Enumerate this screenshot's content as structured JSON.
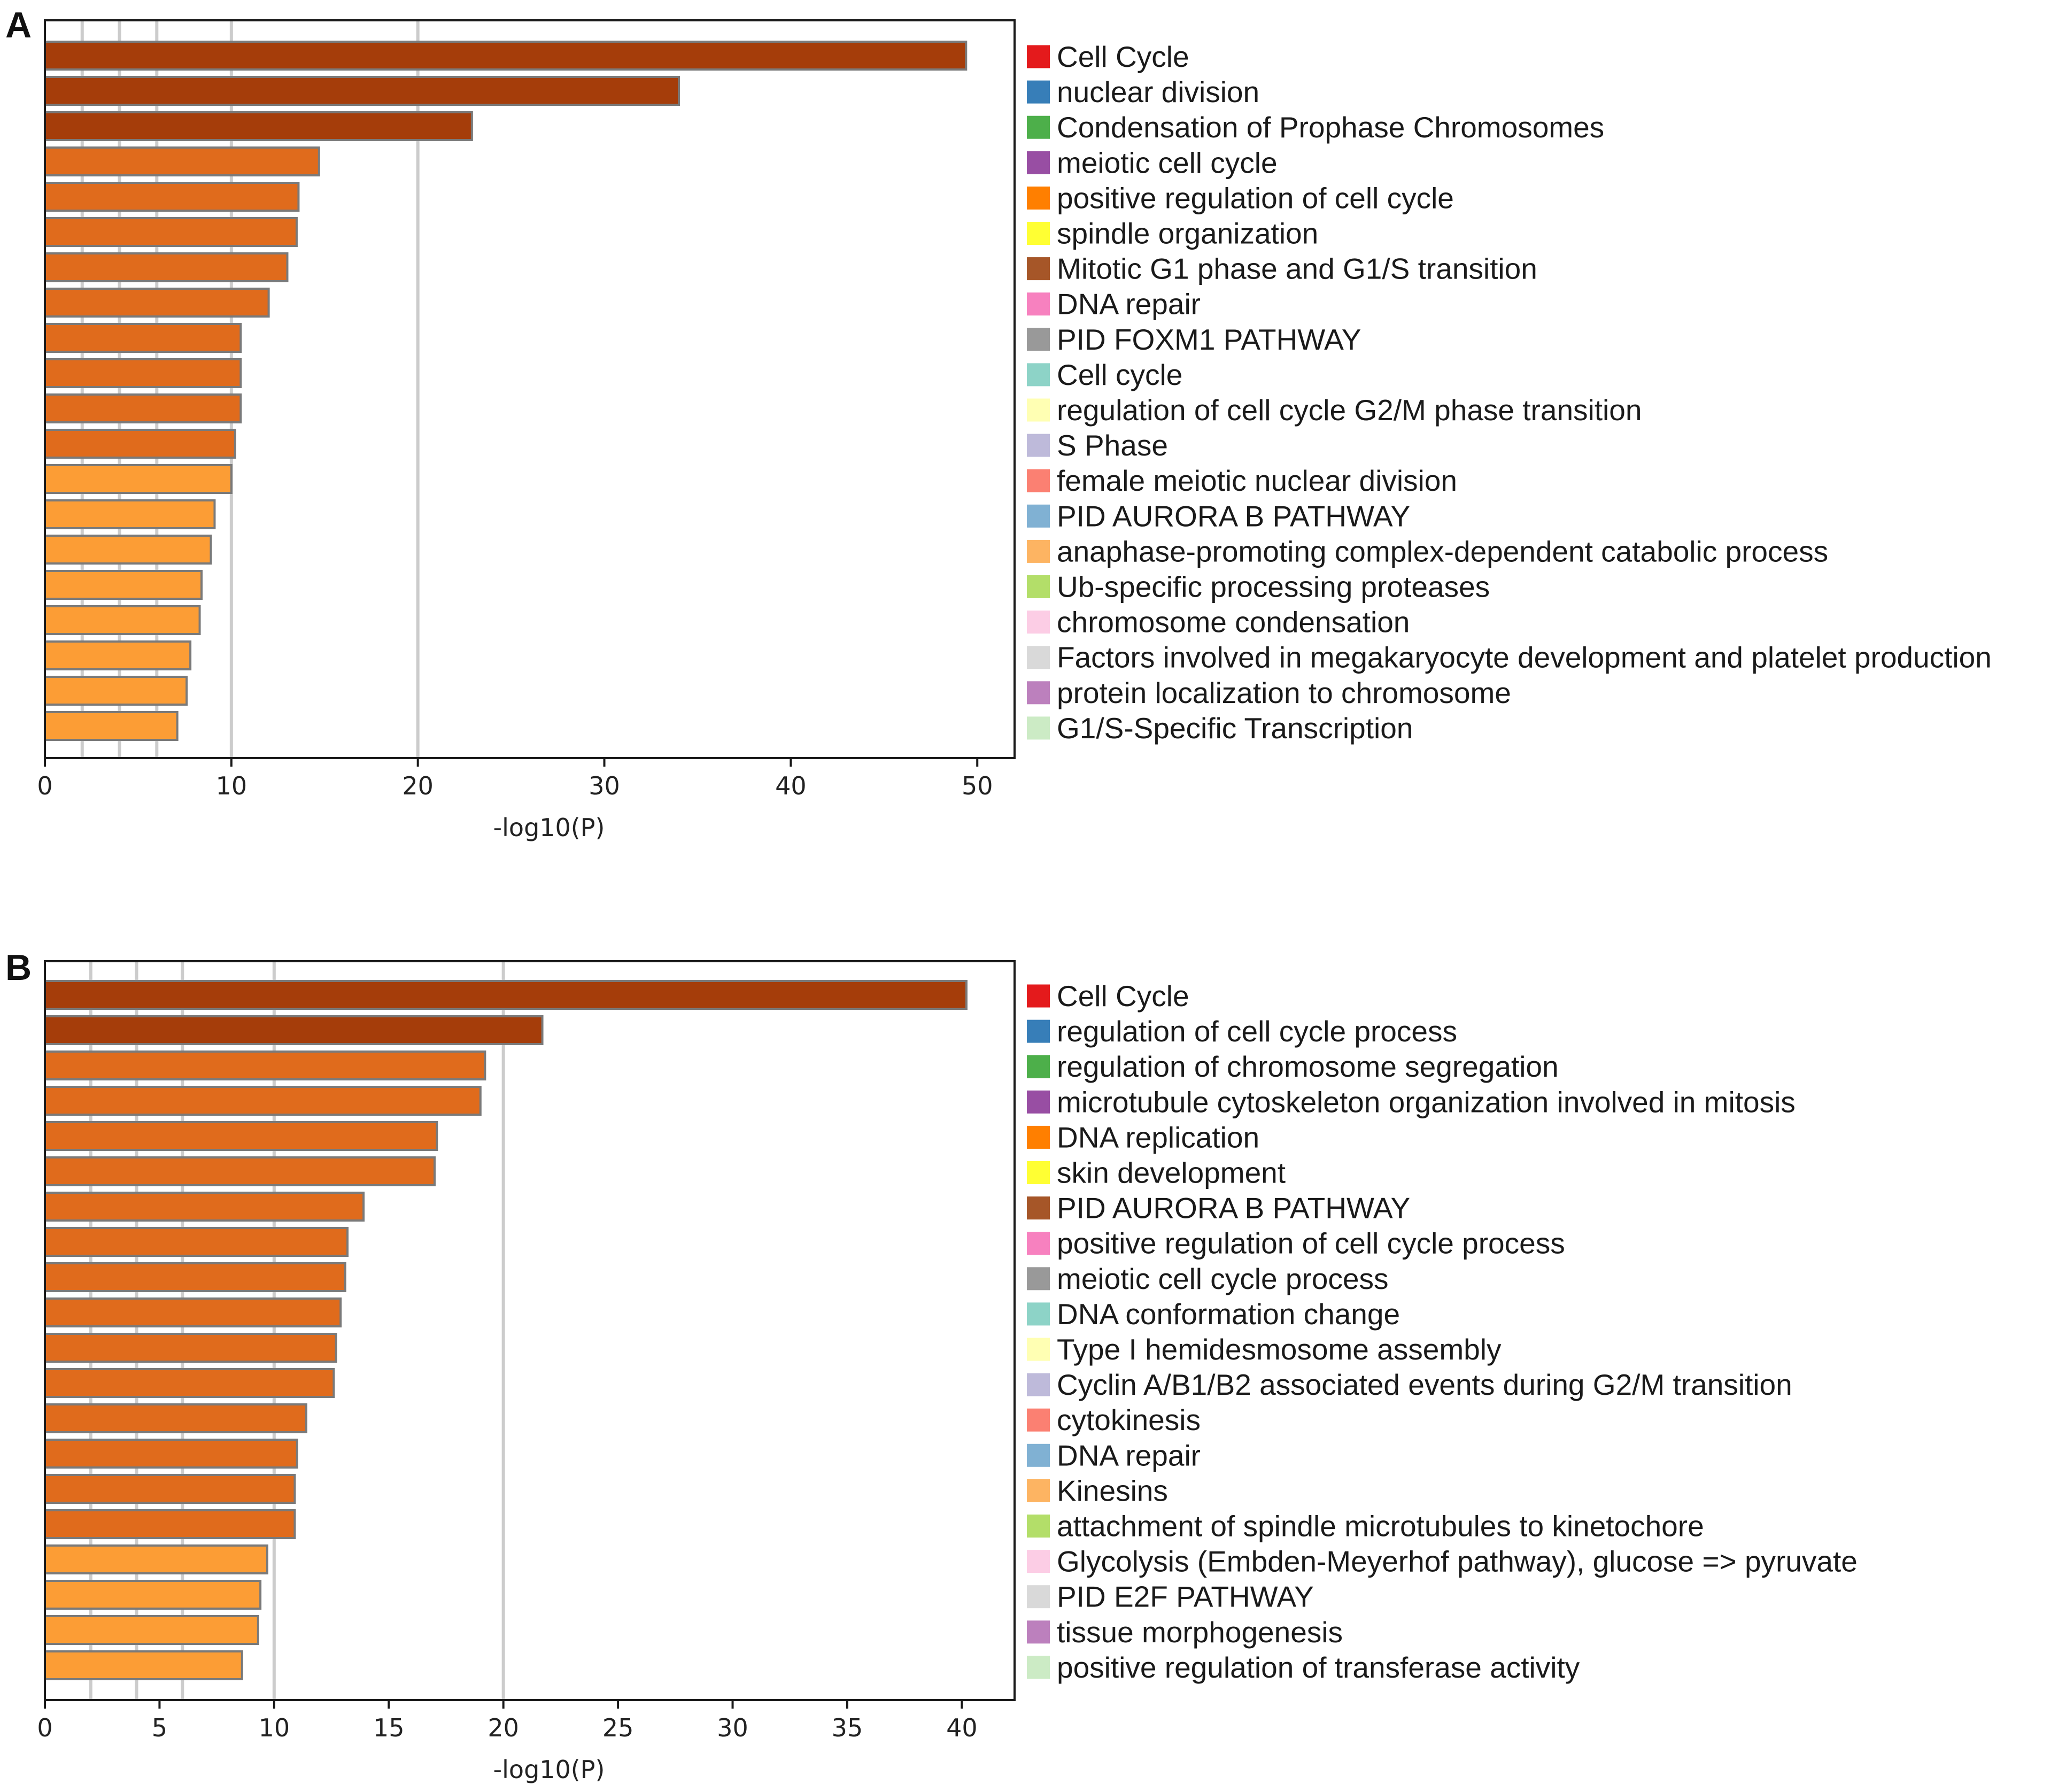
{
  "figure": {
    "panels": [
      "A",
      "B"
    ]
  },
  "chart_data": [
    {
      "panel": "A",
      "type": "bar",
      "orientation": "horizontal",
      "xlabel": "-log10(P)",
      "xlim": [
        0,
        52
      ],
      "xticks": [
        0,
        10,
        20,
        30,
        40,
        50
      ],
      "gridlines": [
        2,
        4,
        6,
        10,
        20
      ],
      "legend_position": "right",
      "categories": [
        "Cell Cycle",
        "nuclear division",
        "Condensation of Prophase Chromosomes",
        "meiotic cell cycle",
        "positive regulation of cell cycle",
        "spindle organization",
        "Mitotic G1 phase and G1/S transition",
        "DNA repair",
        "PID FOXM1 PATHWAY",
        "Cell cycle",
        "regulation of cell cycle G2/M phase transition",
        "S Phase",
        "female meiotic nuclear division",
        "PID AURORA B PATHWAY",
        "anaphase-promoting complex-dependent catabolic process",
        "Ub-specific processing proteases",
        "chromosome condensation",
        "Factors involved in megakaryocyte development and platelet production",
        "protein localization to chromosome",
        "G1/S-Specific Transcription"
      ],
      "values": [
        49.4,
        34.0,
        22.9,
        14.7,
        13.6,
        13.5,
        13.0,
        12.0,
        10.5,
        10.5,
        10.5,
        10.2,
        10.0,
        9.1,
        8.9,
        8.4,
        8.3,
        7.8,
        7.6,
        7.1
      ],
      "bar_colors": [
        "#a53d0a",
        "#a53d0a",
        "#a53d0a",
        "#e06b1c",
        "#e06b1c",
        "#e06b1c",
        "#e06b1c",
        "#e06b1c",
        "#e06b1c",
        "#e06b1c",
        "#e06b1c",
        "#e06b1c",
        "#fc9d35",
        "#fc9d35",
        "#fc9d35",
        "#fc9d35",
        "#fc9d35",
        "#fc9d35",
        "#fc9d35",
        "#fc9d35"
      ],
      "legend_colors": [
        "#e41a1c",
        "#377eb8",
        "#4daf4a",
        "#984ea3",
        "#ff7f00",
        "#ffff33",
        "#a65628",
        "#f781bf",
        "#999999",
        "#8dd3c7",
        "#ffffb3",
        "#bebada",
        "#fb8072",
        "#80b1d3",
        "#fdb462",
        "#b3de69",
        "#fccde5",
        "#d9d9d9",
        "#bc80bd",
        "#ccebc5"
      ]
    },
    {
      "panel": "B",
      "type": "bar",
      "orientation": "horizontal",
      "xlabel": "-log10(P)",
      "xlim": [
        0,
        42.3
      ],
      "xticks": [
        0,
        5,
        10,
        15,
        20,
        25,
        30,
        35,
        40
      ],
      "gridlines": [
        2,
        4,
        6,
        10,
        20
      ],
      "legend_position": "right",
      "categories": [
        "Cell Cycle",
        "regulation of cell cycle process",
        "regulation of chromosome segregation",
        "microtubule cytoskeleton organization involved in mitosis",
        "DNA replication",
        "skin development",
        "PID AURORA B PATHWAY",
        "positive regulation of cell cycle process",
        "meiotic cell cycle process",
        "DNA conformation change",
        "Type I hemidesmosome assembly",
        "Cyclin A/B1/B2 associated events during G2/M transition",
        "cytokinesis",
        "DNA repair",
        "Kinesins",
        "attachment of spindle microtubules to kinetochore",
        "Glycolysis (Embden-Meyerhof pathway), glucose => pyruvate",
        "PID E2F PATHWAY",
        "tissue morphogenesis",
        "positive regulation of transferase activity"
      ],
      "values": [
        40.2,
        21.7,
        19.2,
        19.0,
        17.1,
        17.0,
        13.9,
        13.2,
        13.1,
        12.9,
        12.7,
        12.6,
        11.4,
        11.0,
        10.9,
        10.9,
        9.7,
        9.4,
        9.3,
        8.6
      ],
      "bar_colors": [
        "#a53d0a",
        "#a53d0a",
        "#e06b1c",
        "#e06b1c",
        "#e06b1c",
        "#e06b1c",
        "#e06b1c",
        "#e06b1c",
        "#e06b1c",
        "#e06b1c",
        "#e06b1c",
        "#e06b1c",
        "#e06b1c",
        "#e06b1c",
        "#e06b1c",
        "#e06b1c",
        "#fc9d35",
        "#fc9d35",
        "#fc9d35",
        "#fc9d35"
      ],
      "legend_colors": [
        "#e41a1c",
        "#377eb8",
        "#4daf4a",
        "#984ea3",
        "#ff7f00",
        "#ffff33",
        "#a65628",
        "#f781bf",
        "#999999",
        "#8dd3c7",
        "#ffffb3",
        "#bebada",
        "#fb8072",
        "#80b1d3",
        "#fdb462",
        "#b3de69",
        "#fccde5",
        "#d9d9d9",
        "#bc80bd",
        "#ccebc5"
      ]
    }
  ]
}
